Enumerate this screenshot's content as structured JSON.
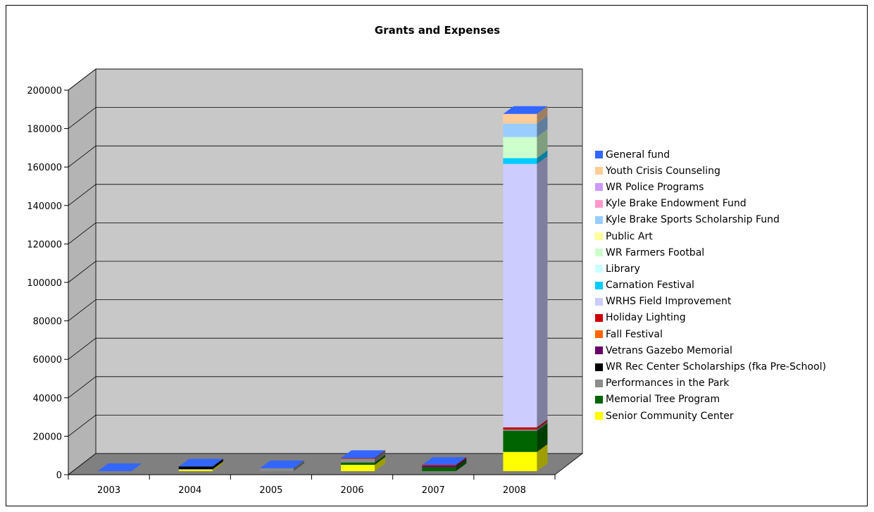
{
  "chart_data": {
    "type": "bar",
    "stacked": true,
    "three_d": true,
    "title": "Grants and Expenses",
    "xlabel": "",
    "ylabel": "",
    "ylim": [
      0,
      200000
    ],
    "yticks": [
      "0",
      "20000",
      "40000",
      "60000",
      "80000",
      "100000",
      "120000",
      "140000",
      "160000",
      "180000",
      "200000"
    ],
    "categories": [
      "2003",
      "2004",
      "2005",
      "2006",
      "2007",
      "2008"
    ],
    "grid": true,
    "legend_position": "right",
    "series": [
      {
        "name": "Senior Community Center",
        "color": "#FFFF00",
        "values": [
          0,
          800,
          0,
          3300,
          0,
          10000
        ]
      },
      {
        "name": "Memorial Tree Program",
        "color": "#006400",
        "values": [
          0,
          0,
          0,
          1200,
          2100,
          11000
        ]
      },
      {
        "name": "Performances in the Park",
        "color": "#8C8C8C",
        "values": [
          0,
          300,
          1500,
          2000,
          0,
          500
        ]
      },
      {
        "name": "WR Rec Center Scholarships (fka Pre-School)",
        "color": "#000000",
        "values": [
          0,
          1300,
          0,
          0,
          0,
          0
        ]
      },
      {
        "name": "Vetrans Gazebo Memorial",
        "color": "#660066",
        "values": [
          0,
          0,
          0,
          0,
          500,
          300
        ]
      },
      {
        "name": "Fall Festival",
        "color": "#FF6600",
        "values": [
          0,
          0,
          0,
          0,
          0,
          200
        ]
      },
      {
        "name": "Holiday Lighting",
        "color": "#CC0000",
        "values": [
          0,
          0,
          0,
          300,
          600,
          800
        ]
      },
      {
        "name": "WRHS Field Improvement",
        "color": "#CCCCFF",
        "values": [
          0,
          0,
          0,
          0,
          0,
          137000
        ]
      },
      {
        "name": "Carnation Festival",
        "color": "#00CCFF",
        "values": [
          0,
          0,
          0,
          0,
          0,
          3000
        ]
      },
      {
        "name": "Library",
        "color": "#CCFFFF",
        "values": [
          0,
          0,
          0,
          0,
          0,
          0
        ]
      },
      {
        "name": "WR Farmers Footbal",
        "color": "#CCFFCC",
        "values": [
          0,
          0,
          0,
          0,
          0,
          11000
        ]
      },
      {
        "name": "Public Art",
        "color": "#FFFF99",
        "values": [
          0,
          0,
          0,
          0,
          0,
          0
        ]
      },
      {
        "name": "Kyle Brake Sports Scholarship Fund",
        "color": "#99CCFF",
        "values": [
          0,
          0,
          0,
          0,
          0,
          7000
        ]
      },
      {
        "name": "Kyle Brake Endowment Fund",
        "color": "#FF99CC",
        "values": [
          0,
          0,
          0,
          0,
          0,
          0
        ]
      },
      {
        "name": "WR Police Programs",
        "color": "#CC99FF",
        "values": [
          0,
          0,
          0,
          0,
          0,
          0
        ]
      },
      {
        "name": "Youth Crisis Counseling",
        "color": "#FFCC99",
        "values": [
          0,
          0,
          0,
          0,
          0,
          5000
        ]
      },
      {
        "name": "General fund",
        "color": "#3366FF",
        "values": [
          0,
          0,
          0,
          0,
          0,
          0
        ]
      }
    ]
  }
}
